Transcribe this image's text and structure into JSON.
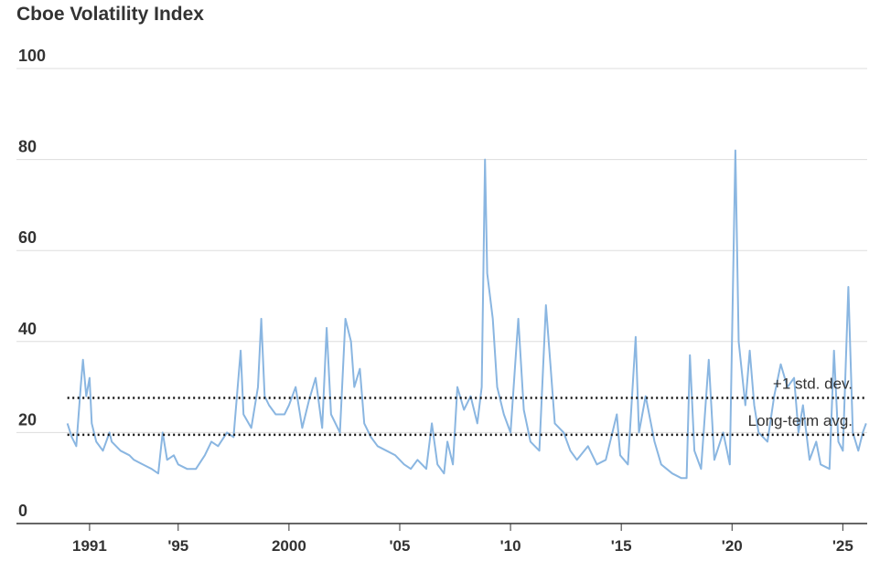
{
  "chart_data": {
    "type": "line",
    "title": "Cboe Volatility Index",
    "x": [
      1990.0,
      1990.2,
      1990.4,
      1990.6,
      1990.7,
      1990.85,
      1991.0,
      1991.1,
      1991.3,
      1991.6,
      1991.9,
      1992.0,
      1992.4,
      1992.8,
      1993.0,
      1993.4,
      1993.8,
      1994.1,
      1994.3,
      1994.5,
      1994.8,
      1995.0,
      1995.4,
      1995.8,
      1996.2,
      1996.5,
      1996.8,
      1997.2,
      1997.5,
      1997.82,
      1997.95,
      1998.3,
      1998.6,
      1998.75,
      1998.9,
      1999.1,
      1999.4,
      1999.8,
      2000.0,
      2000.3,
      2000.6,
      2000.9,
      2001.2,
      2001.5,
      2001.7,
      2001.9,
      2002.3,
      2002.55,
      2002.8,
      2002.95,
      2003.2,
      2003.4,
      2003.7,
      2004.0,
      2004.4,
      2004.8,
      2005.2,
      2005.5,
      2005.8,
      2006.2,
      2006.45,
      2006.7,
      2007.0,
      2007.15,
      2007.4,
      2007.6,
      2007.9,
      2008.2,
      2008.5,
      2008.7,
      2008.85,
      2008.95,
      2009.2,
      2009.4,
      2009.7,
      2010.0,
      2010.35,
      2010.6,
      2010.9,
      2011.3,
      2011.6,
      2011.8,
      2012.0,
      2012.4,
      2012.7,
      2013.0,
      2013.5,
      2013.9,
      2014.3,
      2014.8,
      2014.95,
      2015.3,
      2015.65,
      2015.8,
      2016.1,
      2016.5,
      2016.8,
      2017.3,
      2017.7,
      2017.95,
      2018.1,
      2018.3,
      2018.6,
      2018.95,
      2019.2,
      2019.6,
      2019.9,
      2020.15,
      2020.3,
      2020.6,
      2020.8,
      2021.0,
      2021.2,
      2021.6,
      2021.9,
      2022.2,
      2022.5,
      2022.8,
      2023.0,
      2023.2,
      2023.5,
      2023.8,
      2024.0,
      2024.4,
      2024.6,
      2024.8,
      2025.0,
      2025.25,
      2025.45,
      2025.7,
      2025.9,
      2026.05
    ],
    "series": [
      {
        "name": "Cboe Volatility Index",
        "color": "#8ab6e1",
        "values": [
          22,
          19,
          17,
          30,
          36,
          28,
          32,
          22,
          18,
          16,
          20,
          18,
          16,
          15,
          14,
          13,
          12,
          11,
          20,
          14,
          15,
          13,
          12,
          12,
          15,
          18,
          17,
          20,
          19,
          38,
          24,
          21,
          30,
          45,
          28,
          26,
          24,
          24,
          26,
          30,
          21,
          27,
          32,
          21,
          43,
          24,
          20,
          45,
          40,
          30,
          34,
          22,
          19,
          17,
          16,
          15,
          13,
          12,
          14,
          12,
          22,
          13,
          11,
          18,
          13,
          30,
          25,
          28,
          22,
          30,
          80,
          55,
          45,
          30,
          24,
          20,
          45,
          25,
          18,
          16,
          48,
          35,
          22,
          20,
          16,
          14,
          17,
          13,
          14,
          24,
          15,
          13,
          41,
          20,
          28,
          18,
          13,
          11,
          10,
          10,
          37,
          16,
          12,
          36,
          14,
          20,
          13,
          82,
          40,
          26,
          38,
          26,
          20,
          18,
          28,
          35,
          30,
          32,
          20,
          26,
          14,
          18,
          13,
          12,
          38,
          18,
          16,
          52,
          20,
          16,
          20,
          22
        ]
      }
    ],
    "xlim": [
      1987.7,
      2026.1
    ],
    "ylim": [
      0,
      100
    ],
    "xticks": [
      {
        "value": 1991,
        "label": "1991"
      },
      {
        "value": 1995,
        "label": "'95"
      },
      2000,
      {
        "value": 2005,
        "label": "'05"
      },
      {
        "value": 2010,
        "label": "'10"
      },
      {
        "value": 2015,
        "label": "'15"
      },
      {
        "value": 2020,
        "label": "'20"
      },
      {
        "value": 2025,
        "label": "'25"
      }
    ],
    "yticks": [
      0,
      20,
      40,
      60,
      80,
      100
    ],
    "grid": true,
    "reference_lines": [
      {
        "label": "+1 std. dev.",
        "value": 27.6
      },
      {
        "label": "Long-term avg.",
        "value": 19.5
      }
    ]
  }
}
